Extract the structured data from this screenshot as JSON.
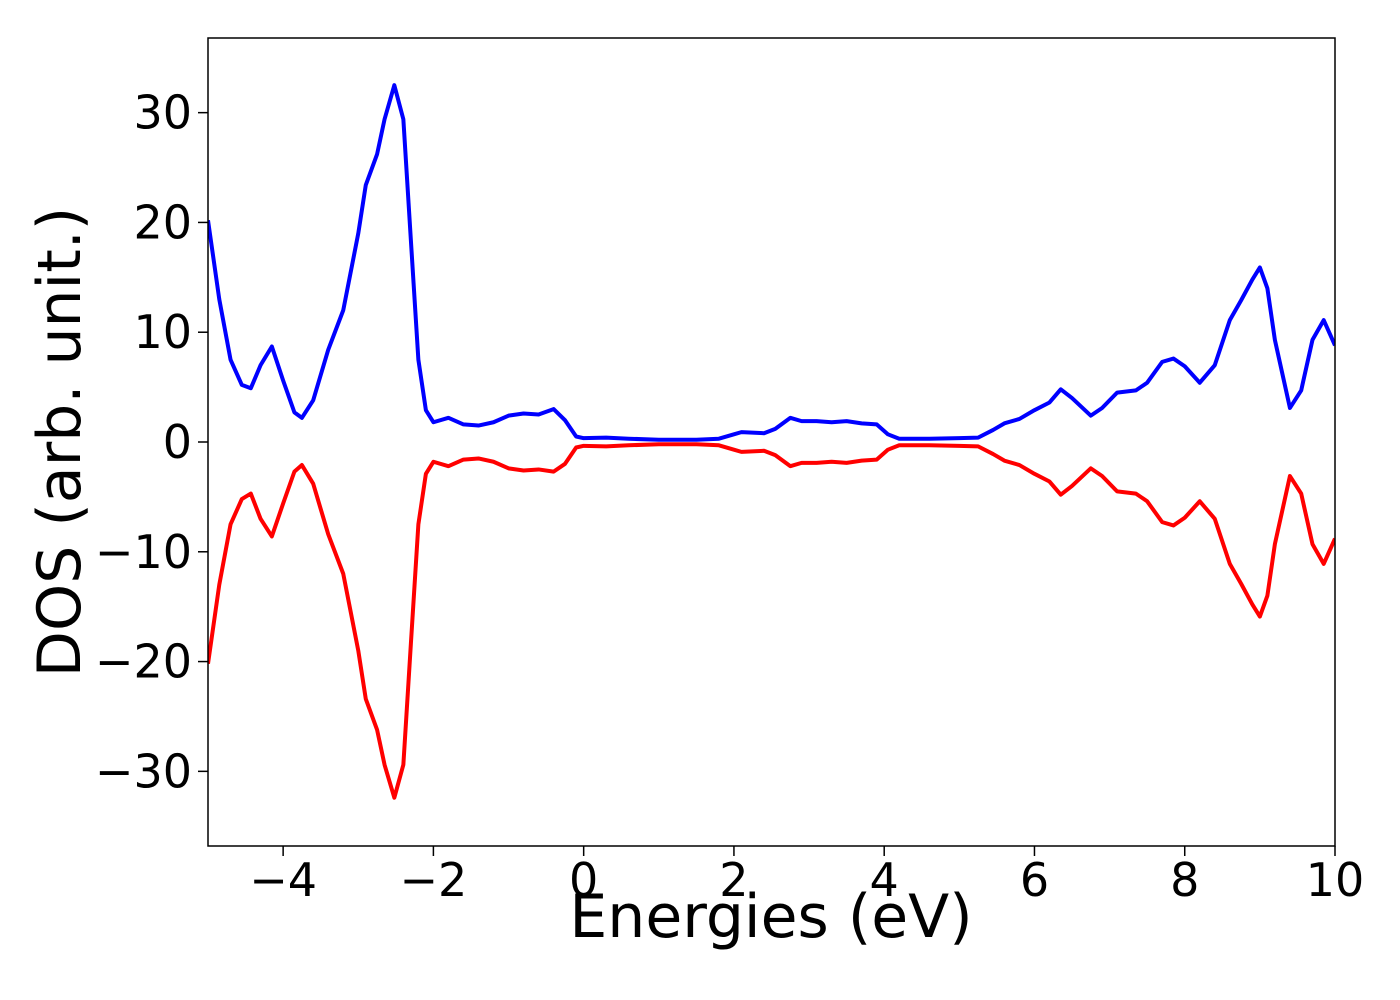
{
  "chart_data": {
    "type": "line",
    "xlabel": "Energies (eV)",
    "ylabel": "DOS (arb. unit.)",
    "x": [
      -5,
      -4.85,
      -4.7,
      -4.55,
      -4.43,
      -4.3,
      -4.15,
      -4,
      -3.85,
      -3.75,
      -3.6,
      -3.4,
      -3.2,
      -3,
      -2.9,
      -2.75,
      -2.65,
      -2.52,
      -2.4,
      -2.3,
      -2.2,
      -2.1,
      -2,
      -1.8,
      -1.6,
      -1.4,
      -1.2,
      -1,
      -0.8,
      -0.6,
      -0.4,
      -0.25,
      -0.1,
      0,
      0.3,
      0.6,
      1,
      1.5,
      1.8,
      2,
      2.1,
      2.4,
      2.55,
      2.75,
      2.9,
      3.1,
      3.3,
      3.5,
      3.7,
      3.9,
      4.05,
      4.2,
      4.6,
      5,
      5.25,
      5.45,
      5.6,
      5.8,
      6,
      6.2,
      6.35,
      6.5,
      6.75,
      6.9,
      7.1,
      7.35,
      7.5,
      7.7,
      7.85,
      8,
      8.2,
      8.4,
      8.6,
      8.75,
      8.9,
      9,
      9.1,
      9.2,
      9.4,
      9.55,
      9.7,
      9.85,
      10
    ],
    "series": [
      {
        "color": "#0000ff",
        "values": [
          20.2,
          13,
          7.5,
          5.2,
          4.9,
          7,
          8.7,
          5.6,
          2.7,
          2.2,
          3.8,
          8.4,
          12,
          19,
          23.4,
          26.2,
          29.4,
          32.5,
          29.4,
          18.4,
          7.5,
          2.9,
          1.8,
          2.2,
          1.6,
          1.5,
          1.8,
          2.4,
          2.6,
          2.5,
          3,
          2,
          0.5,
          0.35,
          0.4,
          0.3,
          0.2,
          0.2,
          0.3,
          0.7,
          0.9,
          0.8,
          1.2,
          2.2,
          1.9,
          1.9,
          1.8,
          1.9,
          1.7,
          1.6,
          0.7,
          0.3,
          0.3,
          0.35,
          0.4,
          1.1,
          1.7,
          2.1,
          2.9,
          3.6,
          4.8,
          4,
          2.4,
          3.1,
          4.5,
          4.7,
          5.4,
          7.3,
          7.6,
          6.9,
          5.4,
          7,
          11.1,
          12.9,
          14.8,
          15.9,
          14,
          9.3,
          3.1,
          4.7,
          9.3,
          11.1,
          8.8
        ]
      },
      {
        "color": "#ff0000",
        "values": [
          -20.2,
          -13,
          -7.5,
          -5.2,
          -4.7,
          -7,
          -8.6,
          -5.6,
          -2.7,
          -2.1,
          -3.8,
          -8.4,
          -12,
          -19,
          -23.4,
          -26.2,
          -29.4,
          -32.4,
          -29.4,
          -18.4,
          -7.5,
          -2.9,
          -1.8,
          -2.2,
          -1.6,
          -1.5,
          -1.8,
          -2.4,
          -2.6,
          -2.5,
          -2.7,
          -2,
          -0.5,
          -0.35,
          -0.4,
          -0.3,
          -0.2,
          -0.2,
          -0.3,
          -0.7,
          -0.9,
          -0.8,
          -1.2,
          -2.2,
          -1.9,
          -1.9,
          -1.8,
          -1.9,
          -1.7,
          -1.6,
          -0.7,
          -0.3,
          -0.3,
          -0.35,
          -0.4,
          -1.1,
          -1.7,
          -2.1,
          -2.9,
          -3.6,
          -4.8,
          -4,
          -2.4,
          -3.1,
          -4.5,
          -4.7,
          -5.4,
          -7.3,
          -7.6,
          -6.9,
          -5.4,
          -7,
          -11.1,
          -12.9,
          -14.8,
          -15.9,
          -14,
          -9.3,
          -3.1,
          -4.7,
          -9.3,
          -11.1,
          -8.8
        ]
      }
    ],
    "xlim": [
      -5,
      10
    ],
    "xticks": [
      {
        "value": -4,
        "label": "−4"
      },
      {
        "value": -2,
        "label": "−2"
      },
      0,
      2,
      4,
      6,
      8,
      10
    ],
    "ylim": [
      -36.8,
      36.8
    ],
    "yticks": [
      {
        "value": -30,
        "label": "−30"
      },
      {
        "value": -20,
        "label": "−20"
      },
      {
        "value": -10,
        "label": "−10"
      },
      0,
      10,
      20,
      30
    ]
  }
}
